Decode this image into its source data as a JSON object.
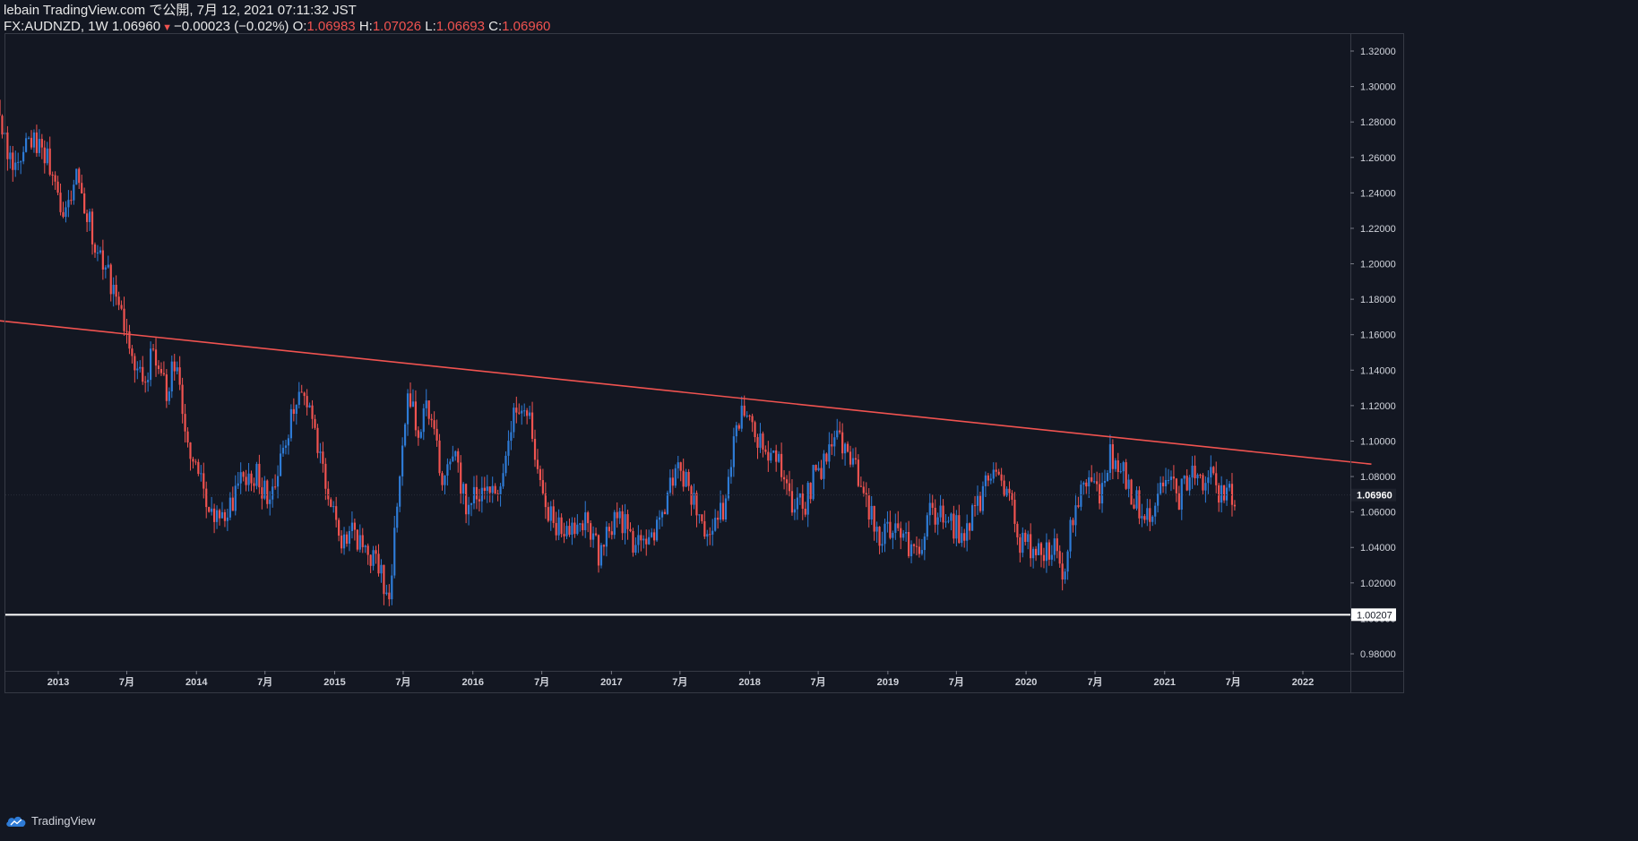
{
  "header": {
    "published_line": "lebain TradingView.com で公開, 7月 12, 2021 07:11:32 JST",
    "symbol": "FX:AUDNZD, 1W",
    "last": "1.06960",
    "change": "−0.00023 (−0.02%)",
    "o_label": "O:",
    "o_value": "1.06983",
    "h_label": "H:",
    "h_value": "1.07026",
    "l_label": "L:",
    "l_value": "1.06693",
    "c_label": "C:",
    "c_value": "1.06960"
  },
  "footer": {
    "brand": "TradingView",
    "logo_icon": "tradingview-cloud-icon"
  },
  "colors": {
    "background": "#131722",
    "up": "#2e7bd6",
    "down": "#f05350",
    "axis_text": "#d1d4dc",
    "trendline": "#f05350",
    "support_line": "#ffffff"
  },
  "chart_data": {
    "type": "candlestick",
    "symbol": "FX:AUDNZD",
    "timeframe": "1W",
    "y_axis": {
      "ylim": [
        0.97,
        1.34
      ],
      "ticks": [
        "0.98000",
        "1.00000",
        "1.02000",
        "1.04000",
        "1.06000",
        "1.08000",
        "1.10000",
        "1.12000",
        "1.14000",
        "1.16000",
        "1.18000",
        "1.20000",
        "1.22000",
        "1.24000",
        "1.26000",
        "1.28000",
        "1.30000",
        "1.32000"
      ],
      "tick_values": [
        0.98,
        1.0,
        1.02,
        1.04,
        1.06,
        1.08,
        1.1,
        1.12,
        1.14,
        1.16,
        1.18,
        1.2,
        1.22,
        1.24,
        1.26,
        1.28,
        1.3,
        1.32
      ]
    },
    "x_axis": {
      "range": [
        "2012-07-23",
        "2022-07-01"
      ],
      "ticks": [
        {
          "label": "2013",
          "date": "2013-01-01"
        },
        {
          "label": "7月",
          "date": "2013-07-01"
        },
        {
          "label": "2014",
          "date": "2014-01-01"
        },
        {
          "label": "7月",
          "date": "2014-07-01"
        },
        {
          "label": "2015",
          "date": "2015-01-01"
        },
        {
          "label": "7月",
          "date": "2015-07-01"
        },
        {
          "label": "2016",
          "date": "2016-01-01"
        },
        {
          "label": "7月",
          "date": "2016-07-01"
        },
        {
          "label": "2017",
          "date": "2017-01-01"
        },
        {
          "label": "7月",
          "date": "2017-07-01"
        },
        {
          "label": "2018",
          "date": "2018-01-01"
        },
        {
          "label": "7月",
          "date": "2018-07-01"
        },
        {
          "label": "2019",
          "date": "2019-01-01"
        },
        {
          "label": "7月",
          "date": "2019-07-01"
        },
        {
          "label": "2020",
          "date": "2020-01-01"
        },
        {
          "label": "7月",
          "date": "2020-07-01"
        },
        {
          "label": "2021",
          "date": "2021-01-01"
        },
        {
          "label": "7月",
          "date": "2021-07-01"
        },
        {
          "label": "2022",
          "date": "2022-01-01"
        }
      ]
    },
    "price_path": [
      [
        "2012-07-23",
        1.285
      ],
      [
        "2012-09-10",
        1.252
      ],
      [
        "2012-10-22",
        1.272
      ],
      [
        "2012-12-03",
        1.262
      ],
      [
        "2013-01-14",
        1.225
      ],
      [
        "2013-02-18",
        1.254
      ],
      [
        "2013-03-25",
        1.222
      ],
      [
        "2013-05-06",
        1.198
      ],
      [
        "2013-06-10",
        1.178
      ],
      [
        "2013-07-08",
        1.15
      ],
      [
        "2013-08-12",
        1.133
      ],
      [
        "2013-09-09",
        1.148
      ],
      [
        "2013-10-14",
        1.127
      ],
      [
        "2013-11-11",
        1.148
      ],
      [
        "2013-12-09",
        1.092
      ],
      [
        "2014-01-13",
        1.074
      ],
      [
        "2014-02-17",
        1.061
      ],
      [
        "2014-03-24",
        1.062
      ],
      [
        "2014-04-28",
        1.075
      ],
      [
        "2014-06-09",
        1.08
      ],
      [
        "2014-07-14",
        1.065
      ],
      [
        "2014-08-11",
        1.093
      ],
      [
        "2014-09-08",
        1.115
      ],
      [
        "2014-10-13",
        1.125
      ],
      [
        "2014-11-17",
        1.098
      ],
      [
        "2014-12-15",
        1.066
      ],
      [
        "2015-01-12",
        1.046
      ],
      [
        "2015-02-16",
        1.049
      ],
      [
        "2015-03-16",
        1.036
      ],
      [
        "2015-04-20",
        1.036
      ],
      [
        "2015-05-25",
        1.011
      ],
      [
        "2015-06-15",
        1.06
      ],
      [
        "2015-07-13",
        1.121
      ],
      [
        "2015-08-10",
        1.108
      ],
      [
        "2015-09-07",
        1.12
      ],
      [
        "2015-10-12",
        1.077
      ],
      [
        "2015-11-09",
        1.093
      ],
      [
        "2015-12-14",
        1.063
      ],
      [
        "2016-01-11",
        1.069
      ],
      [
        "2016-02-15",
        1.07
      ],
      [
        "2016-03-14",
        1.077
      ],
      [
        "2016-04-18",
        1.118
      ],
      [
        "2016-05-23",
        1.121
      ],
      [
        "2016-06-20",
        1.079
      ],
      [
        "2016-07-25",
        1.058
      ],
      [
        "2016-08-22",
        1.046
      ],
      [
        "2016-09-19",
        1.047
      ],
      [
        "2016-10-24",
        1.059
      ],
      [
        "2016-11-28",
        1.034
      ],
      [
        "2016-12-26",
        1.048
      ],
      [
        "2017-01-23",
        1.057
      ],
      [
        "2017-02-27",
        1.045
      ],
      [
        "2017-03-27",
        1.046
      ],
      [
        "2017-04-24",
        1.043
      ],
      [
        "2017-05-22",
        1.064
      ],
      [
        "2017-06-26",
        1.087
      ],
      [
        "2017-07-24",
        1.077
      ],
      [
        "2017-08-21",
        1.055
      ],
      [
        "2017-09-18",
        1.044
      ],
      [
        "2017-10-23",
        1.062
      ],
      [
        "2017-11-20",
        1.095
      ],
      [
        "2017-12-18",
        1.119
      ],
      [
        "2018-01-15",
        1.103
      ],
      [
        "2018-02-19",
        1.095
      ],
      [
        "2018-03-19",
        1.085
      ],
      [
        "2018-04-16",
        1.066
      ],
      [
        "2018-05-21",
        1.062
      ],
      [
        "2018-06-25",
        1.083
      ],
      [
        "2018-07-23",
        1.09
      ],
      [
        "2018-08-20",
        1.102
      ],
      [
        "2018-09-17",
        1.089
      ],
      [
        "2018-10-22",
        1.08
      ],
      [
        "2018-11-19",
        1.058
      ],
      [
        "2018-12-17",
        1.045
      ],
      [
        "2019-01-21",
        1.052
      ],
      [
        "2019-02-18",
        1.043
      ],
      [
        "2019-03-18",
        1.033
      ],
      [
        "2019-04-22",
        1.058
      ],
      [
        "2019-05-20",
        1.056
      ],
      [
        "2019-06-24",
        1.053
      ],
      [
        "2019-07-22",
        1.044
      ],
      [
        "2019-08-19",
        1.06
      ],
      [
        "2019-09-16",
        1.076
      ],
      [
        "2019-10-21",
        1.08
      ],
      [
        "2019-11-18",
        1.065
      ],
      [
        "2019-12-16",
        1.045
      ],
      [
        "2020-01-20",
        1.04
      ],
      [
        "2020-02-17",
        1.036
      ],
      [
        "2020-03-16",
        1.038
      ],
      [
        "2020-04-06",
        1.018
      ],
      [
        "2020-04-20",
        1.045
      ],
      [
        "2020-05-18",
        1.067
      ],
      [
        "2020-06-15",
        1.08
      ],
      [
        "2020-07-13",
        1.072
      ],
      [
        "2020-08-10",
        1.094
      ],
      [
        "2020-09-07",
        1.086
      ],
      [
        "2020-10-12",
        1.068
      ],
      [
        "2020-11-09",
        1.054
      ],
      [
        "2020-12-07",
        1.068
      ],
      [
        "2021-01-11",
        1.075
      ],
      [
        "2021-02-08",
        1.068
      ],
      [
        "2021-03-08",
        1.082
      ],
      [
        "2021-04-12",
        1.08
      ],
      [
        "2021-05-10",
        1.078
      ],
      [
        "2021-06-07",
        1.068
      ],
      [
        "2021-06-21",
        1.074
      ],
      [
        "2021-07-05",
        1.0696
      ]
    ],
    "trendline": {
      "points": [
        [
          "2012-07-23",
          1.168
        ],
        [
          "2022-07-01",
          1.087
        ]
      ],
      "color": "#f05350"
    },
    "support_line": {
      "value": 1.00207,
      "label": "1.00207",
      "color": "#ffffff"
    },
    "last_price": {
      "value": 1.0696,
      "label": "1.06960"
    }
  }
}
